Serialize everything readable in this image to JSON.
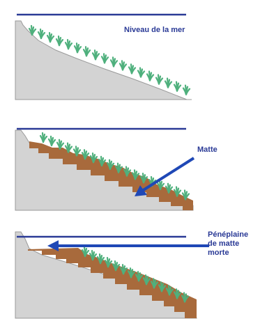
{
  "colors": {
    "sea_line": "#2a3a96",
    "label": "#2a3a96",
    "arrow": "#1f48b6",
    "rock": "#d3d3d3",
    "rock_edge": "#9a9a9a",
    "matte": "#a86a3c",
    "grass": "#4fb07d"
  },
  "panels": [
    {
      "label": "Niveau de la mer"
    },
    {
      "label": "Matte"
    },
    {
      "label_lines": [
        "Pénéplaine",
        "de matte",
        "morte"
      ]
    }
  ],
  "icons": {
    "grass": "seagrass-tuft-icon",
    "arrow": "arrow-icon"
  }
}
